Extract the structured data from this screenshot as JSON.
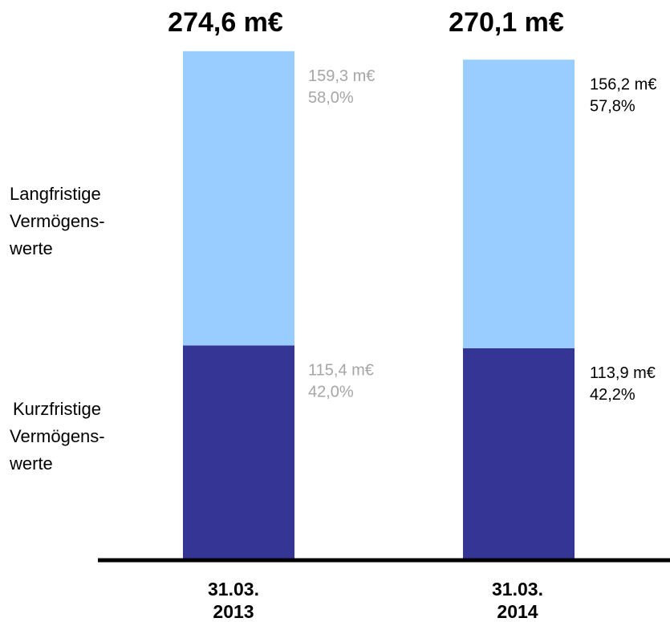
{
  "chart_data": {
    "type": "bar",
    "stacked": true,
    "categories": [
      {
        "line1": "31.03.",
        "line2": "2013"
      },
      {
        "line1": "31.03.",
        "line2": "2014"
      }
    ],
    "totals": [
      "274,6 m€",
      "270,1 m€"
    ],
    "total_values": [
      274.6,
      270.1
    ],
    "series": [
      {
        "name_lines": [
          "Kurzfristige",
          "Vermögens-",
          "werte"
        ],
        "color": "#353596",
        "values": [
          115.4,
          113.9
        ],
        "value_labels": [
          "115,4 m€",
          "113,9 m€"
        ],
        "percent_labels": [
          "42,0%",
          "42,2%"
        ]
      },
      {
        "name_lines": [
          "Langfristige",
          "Vermögens-",
          "werte"
        ],
        "color": "#99ccff",
        "values": [
          159.3,
          156.2
        ],
        "value_labels": [
          "159,3 m€",
          "156,2 m€"
        ],
        "percent_labels": [
          "58,0%",
          "57,8%"
        ]
      }
    ],
    "label_colors": [
      "#a6a6a6",
      "#000000"
    ],
    "ylim": [
      0,
      274.6
    ],
    "unit": "m€"
  }
}
